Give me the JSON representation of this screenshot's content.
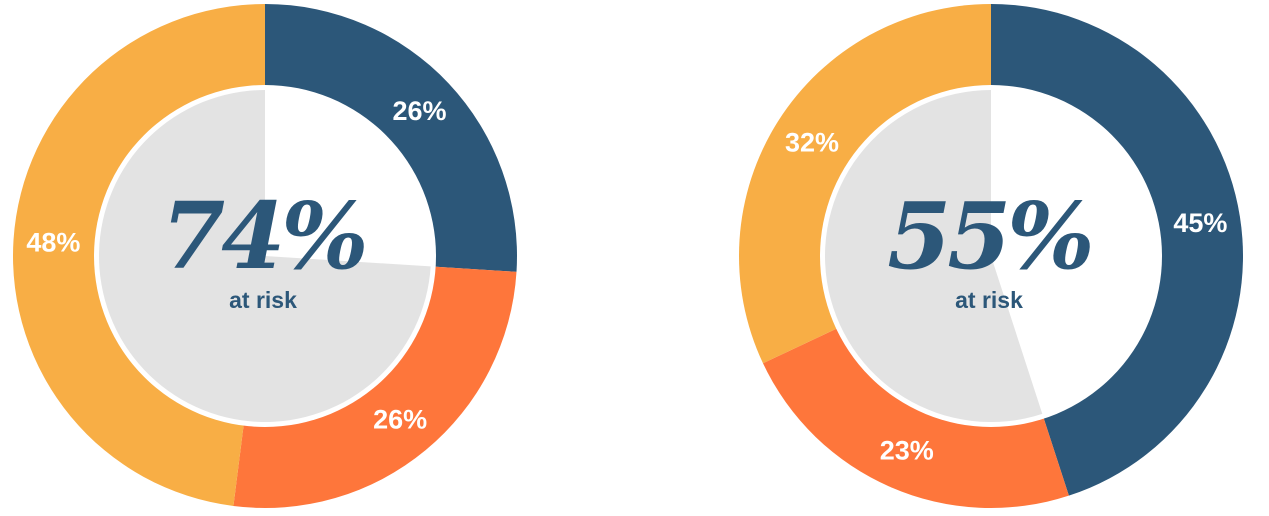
{
  "colors": {
    "navy": "#2C5779",
    "orange": "#FE763B",
    "yellow": "#F8AE45",
    "inner_fill": "#E3E3E3",
    "inner_empty": "#FFFFFF",
    "center_text": "#2C5779"
  },
  "chart_data": [
    {
      "type": "pie",
      "style": "donut",
      "slices": [
        {
          "label": "26%",
          "value": 26,
          "color": "navy"
        },
        {
          "label": "26%",
          "value": 26,
          "color": "orange"
        },
        {
          "label": "48%",
          "value": 48,
          "color": "yellow"
        }
      ],
      "inner_filled_share": 74,
      "center_value": "74%",
      "center_label": "at risk"
    },
    {
      "type": "pie",
      "style": "donut",
      "slices": [
        {
          "label": "45%",
          "value": 45,
          "color": "navy"
        },
        {
          "label": "23%",
          "value": 23,
          "color": "orange"
        },
        {
          "label": "32%",
          "value": 32,
          "color": "yellow"
        }
      ],
      "inner_filled_share": 55,
      "center_value": "55%",
      "center_label": "at risk"
    }
  ]
}
